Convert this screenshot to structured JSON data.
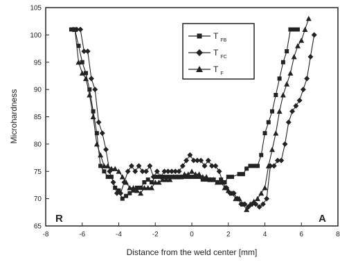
{
  "chart_data": {
    "type": "line",
    "xlabel": "Distance from the weld center [mm]",
    "ylabel": "Microhardness",
    "xlim": [
      -8,
      8
    ],
    "ylim": [
      65,
      105
    ],
    "xticks": [
      -8,
      -6,
      -4,
      -2,
      0,
      2,
      4,
      6,
      8
    ],
    "yticks": [
      65,
      70,
      75,
      80,
      85,
      90,
      95,
      100,
      105
    ],
    "annotations": [
      "R",
      "A"
    ],
    "legend_position": "top-right",
    "legend": [
      {
        "prefix": "T",
        "sub": "FB",
        "marker": "square"
      },
      {
        "prefix": "T",
        "sub": "FC",
        "marker": "diamond"
      },
      {
        "prefix": "T",
        "sub": "F",
        "marker": "triangle"
      }
    ],
    "series": [
      {
        "marker": "square",
        "points": [
          [
            -6.6,
            101
          ],
          [
            -6.4,
            101
          ],
          [
            -6.2,
            98
          ],
          [
            -6.0,
            95
          ],
          [
            -5.8,
            93
          ],
          [
            -5.6,
            90
          ],
          [
            -5.4,
            86
          ],
          [
            -5.2,
            82
          ],
          [
            -5.0,
            76
          ],
          [
            -4.8,
            75
          ],
          [
            -4.6,
            74
          ],
          [
            -4.4,
            74
          ],
          [
            -4.2,
            72
          ],
          [
            -4.0,
            71.5
          ],
          [
            -3.8,
            70
          ],
          [
            -3.6,
            70.5
          ],
          [
            -3.4,
            71
          ],
          [
            -3.2,
            71.5
          ],
          [
            -3.0,
            72
          ],
          [
            -2.8,
            72
          ],
          [
            -2.6,
            73
          ],
          [
            -2.4,
            73.5
          ],
          [
            -2.2,
            73
          ],
          [
            -2.0,
            74
          ],
          [
            -1.8,
            74
          ],
          [
            -1.6,
            74
          ],
          [
            -1.4,
            74
          ],
          [
            -1.2,
            74
          ],
          [
            -1.0,
            74
          ],
          [
            -0.8,
            74
          ],
          [
            -0.6,
            74
          ],
          [
            -0.4,
            74
          ],
          [
            -0.2,
            74
          ],
          [
            0.0,
            74
          ],
          [
            0.2,
            74
          ],
          [
            0.4,
            74
          ],
          [
            0.6,
            73.5
          ],
          [
            0.8,
            73.5
          ],
          [
            1.0,
            73.5
          ],
          [
            1.2,
            73.5
          ],
          [
            1.4,
            73
          ],
          [
            1.6,
            73.5
          ],
          [
            1.8,
            73
          ],
          [
            2.0,
            74
          ],
          [
            2.2,
            74
          ],
          [
            2.6,
            74.5
          ],
          [
            2.8,
            74.5
          ],
          [
            3.0,
            75.5
          ],
          [
            3.2,
            76
          ],
          [
            3.4,
            76
          ],
          [
            3.6,
            76
          ],
          [
            3.8,
            78
          ],
          [
            4.0,
            82
          ],
          [
            4.2,
            84
          ],
          [
            4.4,
            86
          ],
          [
            4.6,
            89
          ],
          [
            4.8,
            92
          ],
          [
            5.0,
            95
          ],
          [
            5.2,
            97
          ],
          [
            5.4,
            101
          ],
          [
            5.6,
            101
          ],
          [
            5.8,
            101
          ]
        ]
      },
      {
        "marker": "diamond",
        "points": [
          [
            -6.5,
            101
          ],
          [
            -6.3,
            101
          ],
          [
            -6.1,
            101
          ],
          [
            -5.9,
            97
          ],
          [
            -5.7,
            97
          ],
          [
            -5.5,
            92
          ],
          [
            -5.3,
            90
          ],
          [
            -5.1,
            84
          ],
          [
            -4.9,
            82
          ],
          [
            -4.7,
            79
          ],
          [
            -4.5,
            75
          ],
          [
            -4.3,
            73
          ],
          [
            -4.1,
            71
          ],
          [
            -3.9,
            71
          ],
          [
            -3.7,
            73
          ],
          [
            -3.5,
            75
          ],
          [
            -3.3,
            76
          ],
          [
            -3.1,
            75
          ],
          [
            -2.9,
            76
          ],
          [
            -2.7,
            75
          ],
          [
            -2.5,
            75
          ],
          [
            -2.3,
            76
          ],
          [
            -2.1,
            74
          ],
          [
            -1.9,
            75
          ],
          [
            -1.7,
            74
          ],
          [
            -1.5,
            75
          ],
          [
            -1.3,
            75
          ],
          [
            -1.1,
            75
          ],
          [
            -0.9,
            75
          ],
          [
            -0.7,
            75
          ],
          [
            -0.5,
            76
          ],
          [
            -0.3,
            77
          ],
          [
            -0.1,
            78
          ],
          [
            0.1,
            77
          ],
          [
            0.3,
            77
          ],
          [
            0.5,
            77
          ],
          [
            0.7,
            76
          ],
          [
            0.9,
            77
          ],
          [
            1.1,
            76
          ],
          [
            1.3,
            76
          ],
          [
            1.5,
            75
          ],
          [
            1.7,
            73
          ],
          [
            1.9,
            72
          ],
          [
            2.1,
            71
          ],
          [
            2.3,
            71
          ],
          [
            2.5,
            70
          ],
          [
            2.7,
            69
          ],
          [
            2.9,
            69
          ],
          [
            3.1,
            68.5
          ],
          [
            3.3,
            69
          ],
          [
            3.5,
            69
          ],
          [
            3.7,
            68.5
          ],
          [
            3.9,
            69
          ],
          [
            4.1,
            70
          ],
          [
            4.3,
            76
          ],
          [
            4.5,
            76
          ],
          [
            4.7,
            77
          ],
          [
            4.9,
            77
          ],
          [
            5.1,
            80
          ],
          [
            5.3,
            84
          ],
          [
            5.5,
            86
          ],
          [
            5.7,
            87
          ],
          [
            5.9,
            88
          ],
          [
            6.1,
            90
          ],
          [
            6.3,
            92
          ],
          [
            6.5,
            96
          ],
          [
            6.7,
            100
          ]
        ]
      },
      {
        "marker": "triangle",
        "points": [
          [
            -6.4,
            101
          ],
          [
            -6.2,
            95
          ],
          [
            -6.0,
            93
          ],
          [
            -5.8,
            92
          ],
          [
            -5.6,
            89
          ],
          [
            -5.4,
            85
          ],
          [
            -5.2,
            80
          ],
          [
            -5.0,
            78
          ],
          [
            -4.8,
            76
          ],
          [
            -4.6,
            76
          ],
          [
            -4.4,
            75.5
          ],
          [
            -4.2,
            75.5
          ],
          [
            -4.0,
            75
          ],
          [
            -3.8,
            74
          ],
          [
            -3.6,
            73
          ],
          [
            -3.4,
            72
          ],
          [
            -3.2,
            72
          ],
          [
            -3.0,
            71.5
          ],
          [
            -2.8,
            71
          ],
          [
            -2.6,
            72
          ],
          [
            -2.4,
            72
          ],
          [
            -2.2,
            72
          ],
          [
            -2.0,
            73
          ],
          [
            -1.8,
            73
          ],
          [
            -1.6,
            73.5
          ],
          [
            -1.4,
            73.5
          ],
          [
            -1.2,
            73.5
          ],
          [
            -1.0,
            74
          ],
          [
            -0.8,
            74
          ],
          [
            -0.6,
            74
          ],
          [
            -0.4,
            74.5
          ],
          [
            -0.2,
            74.5
          ],
          [
            0.0,
            75
          ],
          [
            0.2,
            74.5
          ],
          [
            0.4,
            74.5
          ],
          [
            0.6,
            74
          ],
          [
            0.8,
            74
          ],
          [
            1.0,
            73.5
          ],
          [
            1.2,
            73.5
          ],
          [
            1.4,
            73
          ],
          [
            1.6,
            73
          ],
          [
            1.8,
            72
          ],
          [
            2.0,
            71.5
          ],
          [
            2.2,
            71
          ],
          [
            2.4,
            70
          ],
          [
            2.6,
            70
          ],
          [
            2.8,
            69
          ],
          [
            3.0,
            68
          ],
          [
            3.2,
            69
          ],
          [
            3.4,
            69.5
          ],
          [
            3.6,
            70
          ],
          [
            3.8,
            71
          ],
          [
            4.0,
            72
          ],
          [
            4.2,
            76
          ],
          [
            4.4,
            79
          ],
          [
            4.6,
            82
          ],
          [
            4.8,
            86
          ],
          [
            5.0,
            89
          ],
          [
            5.2,
            91
          ],
          [
            5.4,
            93
          ],
          [
            5.6,
            96
          ],
          [
            5.8,
            98
          ],
          [
            6.0,
            99
          ],
          [
            6.2,
            101
          ],
          [
            6.4,
            103
          ]
        ]
      }
    ]
  }
}
